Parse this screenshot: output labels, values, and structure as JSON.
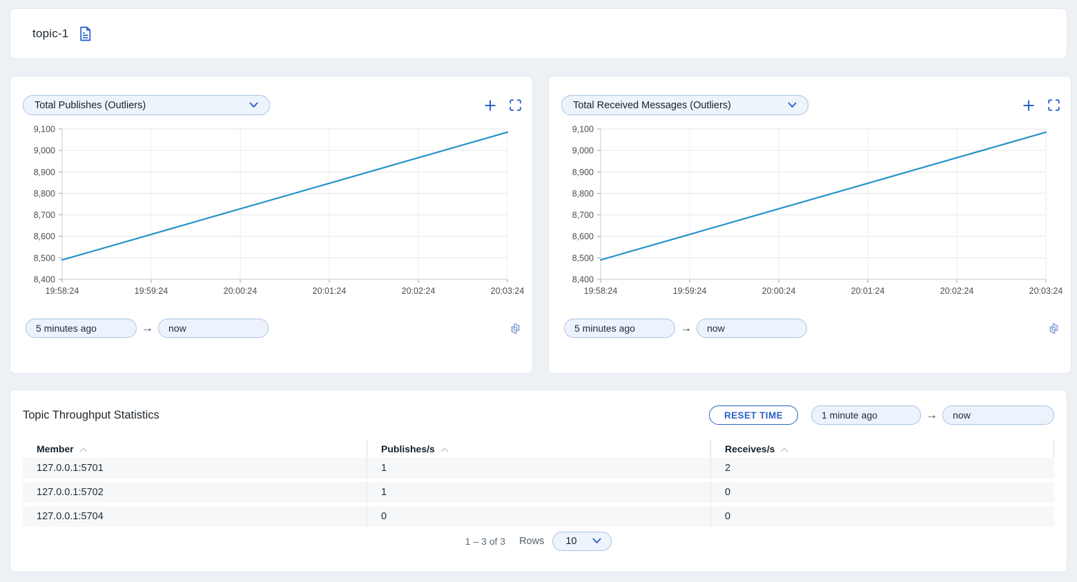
{
  "page": {
    "title": "topic-1"
  },
  "charts": [
    {
      "selected_metric": "Total Publishes (Outliers)",
      "time_from": "5 minutes ago",
      "time_to": "now"
    },
    {
      "selected_metric": "Total Received Messages (Outliers)",
      "time_from": "5 minutes ago",
      "time_to": "now"
    }
  ],
  "chart_data": [
    {
      "type": "line",
      "title": "Total Publishes (Outliers)",
      "x": [
        "19:58:24",
        "19:59:24",
        "20:00:24",
        "20:01:24",
        "20:02:24",
        "20:03:24"
      ],
      "series": [
        {
          "name": "Total Publishes",
          "values": [
            8490,
            8609,
            8728,
            8847,
            8966,
            9085
          ]
        }
      ],
      "ylim": [
        8400,
        9100
      ],
      "ytick_step": 100,
      "grid": true,
      "legend": false,
      "line_color": "#2492c7"
    },
    {
      "type": "line",
      "title": "Total Received Messages (Outliers)",
      "x": [
        "19:58:24",
        "19:59:24",
        "20:00:24",
        "20:01:24",
        "20:02:24",
        "20:03:24"
      ],
      "series": [
        {
          "name": "Total Received Messages",
          "values": [
            8490,
            8609,
            8728,
            8847,
            8966,
            9085
          ]
        }
      ],
      "ylim": [
        8400,
        9100
      ],
      "ytick_step": 100,
      "grid": true,
      "legend": false,
      "line_color": "#2492c7"
    }
  ],
  "table_panel": {
    "title": "Topic Throughput Statistics",
    "reset_button": "RESET TIME",
    "time_from": "1 minute ago",
    "time_to": "now",
    "columns": [
      "Member",
      "Publishes/s",
      "Receives/s"
    ],
    "rows": [
      [
        "127.0.0.1:5701",
        "1",
        "2"
      ],
      [
        "127.0.0.1:5702",
        "1",
        "0"
      ],
      [
        "127.0.0.1:5704",
        "0",
        "0"
      ]
    ],
    "pagination": {
      "range_label": "1 – 3 of 3",
      "rows_label": "Rows",
      "rows_per_page": "10"
    }
  },
  "colors": {
    "accent_blue": "#2a63c9",
    "chart_line": "#2492c7",
    "input_bg": "#edf3fc",
    "input_border": "#a9c2e6",
    "page_bg": "#edf0f5"
  }
}
